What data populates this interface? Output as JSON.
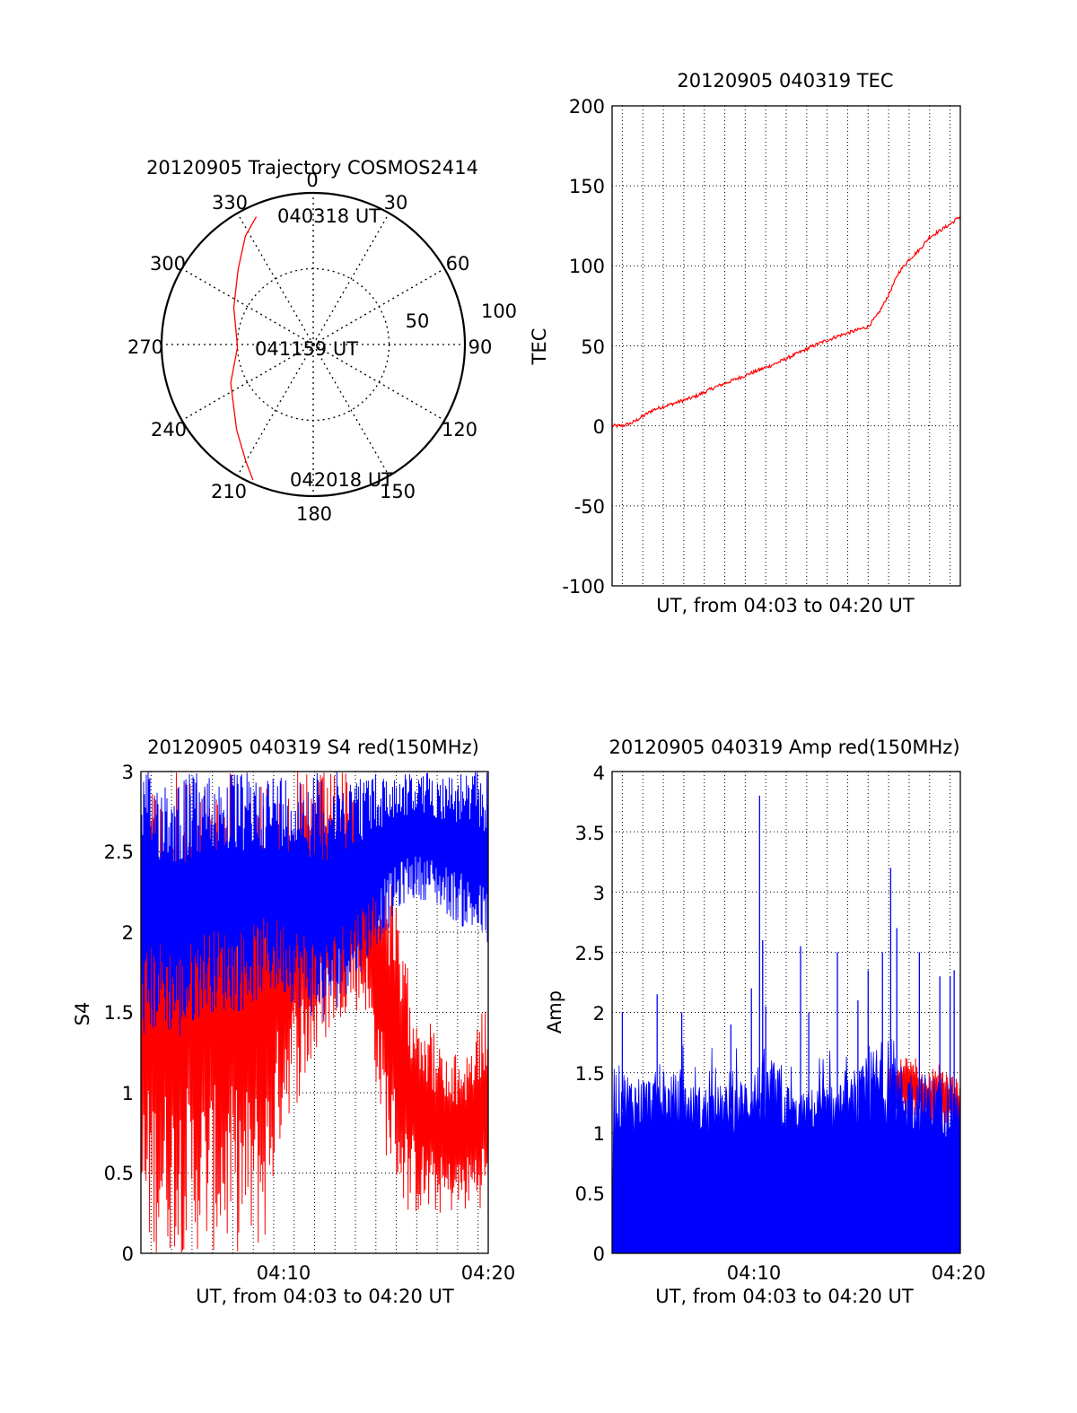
{
  "chart_data": [
    {
      "type": "polar",
      "title": "20120905 Trajectory COSMOS2414",
      "azimuth_ticks": [
        "0",
        "30",
        "60",
        "90",
        "120",
        "150",
        "180",
        "210",
        "240",
        "270",
        "300",
        "330"
      ],
      "radial_ticks": [
        "50",
        "100"
      ],
      "series": [
        {
          "color": "#ff0000",
          "azimuth_deg": [
            336,
            328,
            315,
            295,
            268,
            245,
            222,
            210,
            204
          ],
          "zenith": [
            83,
            76,
            63,
            52,
            45,
            54,
            68,
            80,
            88
          ]
        }
      ],
      "annotations": [
        {
          "text": "040318 UT",
          "azimuth_deg": 5,
          "zenith": 84
        },
        {
          "text": "041159 UT",
          "azimuth_deg": 270,
          "zenith": 2
        },
        {
          "text": "042018 UT",
          "azimuth_deg": 177,
          "zenith": 88
        }
      ]
    },
    {
      "type": "line",
      "title": "20120905 040319 TEC",
      "xlabel": "UT, from 04:03 to 04:20 UT",
      "ylabel": "TEC",
      "xlim": [
        0,
        17
      ],
      "ylim": [
        -100,
        200
      ],
      "yticks": [
        "200",
        "150",
        "100",
        "50",
        "0",
        "-50",
        "-100"
      ],
      "grid": true,
      "series": [
        {
          "color": "#ff0000",
          "x": [
            0,
            0.5,
            1,
            1.5,
            2,
            3,
            4,
            5,
            6,
            7,
            8,
            9,
            9.5,
            10,
            11,
            12,
            12.5,
            13,
            13.5,
            14,
            14.5,
            15,
            15.5,
            16,
            16.5,
            17
          ],
          "y": [
            0,
            0,
            2,
            6,
            10,
            14,
            18,
            24,
            29,
            34,
            39,
            45,
            48,
            51,
            56,
            60,
            62,
            70,
            82,
            96,
            104,
            110,
            118,
            122,
            126,
            131
          ]
        }
      ]
    },
    {
      "type": "line",
      "title": "20120905 040319 S4 red(150MHz)",
      "xlabel": "UT, from 04:03 to 04:20 UT",
      "ylabel": "S4",
      "xlim": [
        0,
        17
      ],
      "ylim": [
        0,
        3
      ],
      "xticks": [
        "04:10",
        "04:20"
      ],
      "yticks": [
        "3",
        "2.5",
        "2",
        "1.5",
        "1",
        "0.5",
        "0"
      ],
      "grid": true,
      "series": [
        {
          "color": "#ff0000",
          "envelope": {
            "x": [
              0,
              1,
              2,
              3,
              4,
              5,
              6,
              7,
              8,
              9,
              10,
              11,
              12,
              13,
              14,
              15,
              16,
              17
            ],
            "low": [
              0,
              0,
              0,
              0,
              0,
              0,
              0,
              0.8,
              1.0,
              1.3,
              1.5,
              1.5,
              0.6,
              0.25,
              0.22,
              0.25,
              0.25,
              0.3
            ],
            "high": [
              3,
              3,
              3,
              3,
              3,
              3,
              3,
              3,
              3,
              3,
              3,
              2.7,
              2.5,
              1.8,
              1.5,
              1.2,
              1.3,
              1.6
            ]
          }
        },
        {
          "color": "#0000ff",
          "envelope": {
            "x": [
              0,
              1,
              2,
              3,
              4,
              5,
              6,
              7,
              8,
              9,
              10,
              11,
              12,
              13,
              14,
              15,
              16,
              17
            ],
            "low": [
              1.3,
              1.4,
              1.3,
              1.5,
              1.5,
              1.5,
              1.6,
              1.6,
              1.5,
              1.4,
              1.6,
              1.8,
              2.0,
              2.2,
              2.2,
              2.1,
              2.0,
              1.9
            ],
            "high": [
              3,
              3,
              3,
              3,
              3,
              3,
              3,
              3,
              3,
              3,
              3,
              3,
              3,
              3,
              3,
              3,
              3,
              3
            ]
          }
        }
      ]
    },
    {
      "type": "line",
      "title": "20120905 040319 Amp red(150MHz)",
      "xlabel": "UT, from 04:03 to 04:20 UT",
      "ylabel": "Amp",
      "xlim": [
        0,
        17
      ],
      "ylim": [
        0,
        4
      ],
      "xticks": [
        "04:10",
        "04:20"
      ],
      "yticks": [
        "4",
        "3.5",
        "3",
        "2.5",
        "2",
        "1.5",
        "1",
        "0.5",
        "0"
      ],
      "grid": true,
      "series": [
        {
          "color": "#ff0000",
          "envelope": {
            "x": [
              13.5,
              14,
              14.5,
              15,
              15.5,
              16,
              16.5,
              17
            ],
            "low": [
              1.2,
              1.2,
              1.1,
              1.1,
              1.0,
              1.0,
              1.0,
              0.9
            ],
            "high": [
              1.6,
              1.6,
              1.7,
              1.6,
              1.5,
              1.6,
              1.5,
              1.5
            ]
          }
        },
        {
          "color": "#0000ff",
          "envelope": {
            "x": [
              0,
              1,
              2,
              3,
              4,
              5,
              6,
              7,
              8,
              9,
              10,
              11,
              12,
              13,
              14,
              15,
              16,
              17
            ],
            "low": [
              0,
              0,
              0,
              0,
              0,
              0,
              0,
              0,
              0,
              0,
              0,
              0,
              0,
              0,
              0,
              0,
              0,
              0
            ],
            "high": [
              1.6,
              1.5,
              1.5,
              1.5,
              1.4,
              1.4,
              1.4,
              1.6,
              1.6,
              1.3,
              1.4,
              1.4,
              1.5,
              1.8,
              1.6,
              1.5,
              1.5,
              1.4
            ]
          },
          "peaks": [
            {
              "x": 0.5,
              "y": 2.0
            },
            {
              "x": 2.2,
              "y": 2.15
            },
            {
              "x": 3.4,
              "y": 2.0
            },
            {
              "x": 5.8,
              "y": 1.9
            },
            {
              "x": 6.8,
              "y": 2.2
            },
            {
              "x": 7.5,
              "y": 2.05
            },
            {
              "x": 7.2,
              "y": 3.8
            },
            {
              "x": 7.35,
              "y": 2.6
            },
            {
              "x": 9.2,
              "y": 2.55
            },
            {
              "x": 9.6,
              "y": 2.0
            },
            {
              "x": 11.0,
              "y": 2.5
            },
            {
              "x": 12.0,
              "y": 2.1
            },
            {
              "x": 12.5,
              "y": 2.35
            },
            {
              "x": 13.2,
              "y": 2.5
            },
            {
              "x": 13.6,
              "y": 3.2
            },
            {
              "x": 13.9,
              "y": 2.7
            },
            {
              "x": 15.0,
              "y": 2.5
            },
            {
              "x": 16.0,
              "y": 2.3
            },
            {
              "x": 16.5,
              "y": 2.3
            },
            {
              "x": 16.7,
              "y": 2.35
            }
          ]
        }
      ]
    }
  ]
}
